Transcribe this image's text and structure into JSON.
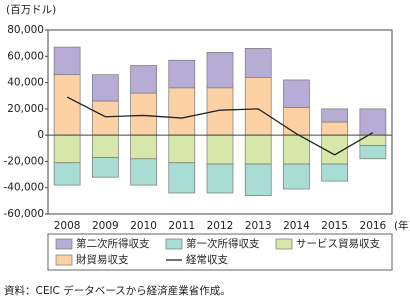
{
  "chart_data": {
    "type": "bar",
    "stacked": true,
    "unit_label": "(百万ドル)",
    "x_unit_label": "(年)",
    "source": "資料：CEIC データベースから経済産業省作成。",
    "categories": [
      "2008",
      "2009",
      "2010",
      "2011",
      "2012",
      "2013",
      "2014",
      "2015",
      "2016"
    ],
    "series": [
      {
        "name": "第二次所得収支",
        "color": "#b6acd6",
        "values": [
          21000,
          20000,
          21000,
          21000,
          27000,
          22000,
          21000,
          10000,
          20000
        ]
      },
      {
        "name": "第一次所得収支",
        "color": "#a9dcd3",
        "values": [
          -17000,
          -15000,
          -20000,
          -23000,
          -22000,
          -24000,
          -19000,
          -13000,
          -10000
        ]
      },
      {
        "name": "サービス貿易収支",
        "color": "#d6e7a9",
        "values": [
          -21000,
          -17000,
          -18000,
          -21000,
          -22000,
          -22000,
          -22000,
          -22000,
          -8000
        ]
      },
      {
        "name": "財貿易収支",
        "color": "#fcd2a4",
        "values": [
          46000,
          26000,
          32000,
          36000,
          36000,
          44000,
          21000,
          10000,
          0
        ]
      },
      {
        "name": "経常収支",
        "color": "#222222",
        "type": "line",
        "values": [
          29000,
          14000,
          15000,
          13000,
          19000,
          20000,
          1000,
          -15000,
          2000
        ]
      }
    ],
    "ylim": [
      -60000,
      80000
    ],
    "yticks": [
      {
        "value": -60000,
        "label": "-60,000"
      },
      {
        "value": -40000,
        "label": "-40,000"
      },
      {
        "value": -20000,
        "label": "-20,000"
      },
      0,
      {
        "value": 20000,
        "label": "20,000"
      },
      {
        "value": 40000,
        "label": "40,000"
      },
      {
        "value": 60000,
        "label": "60,000"
      },
      {
        "value": 80000,
        "label": "80,000"
      }
    ],
    "grid": false
  }
}
